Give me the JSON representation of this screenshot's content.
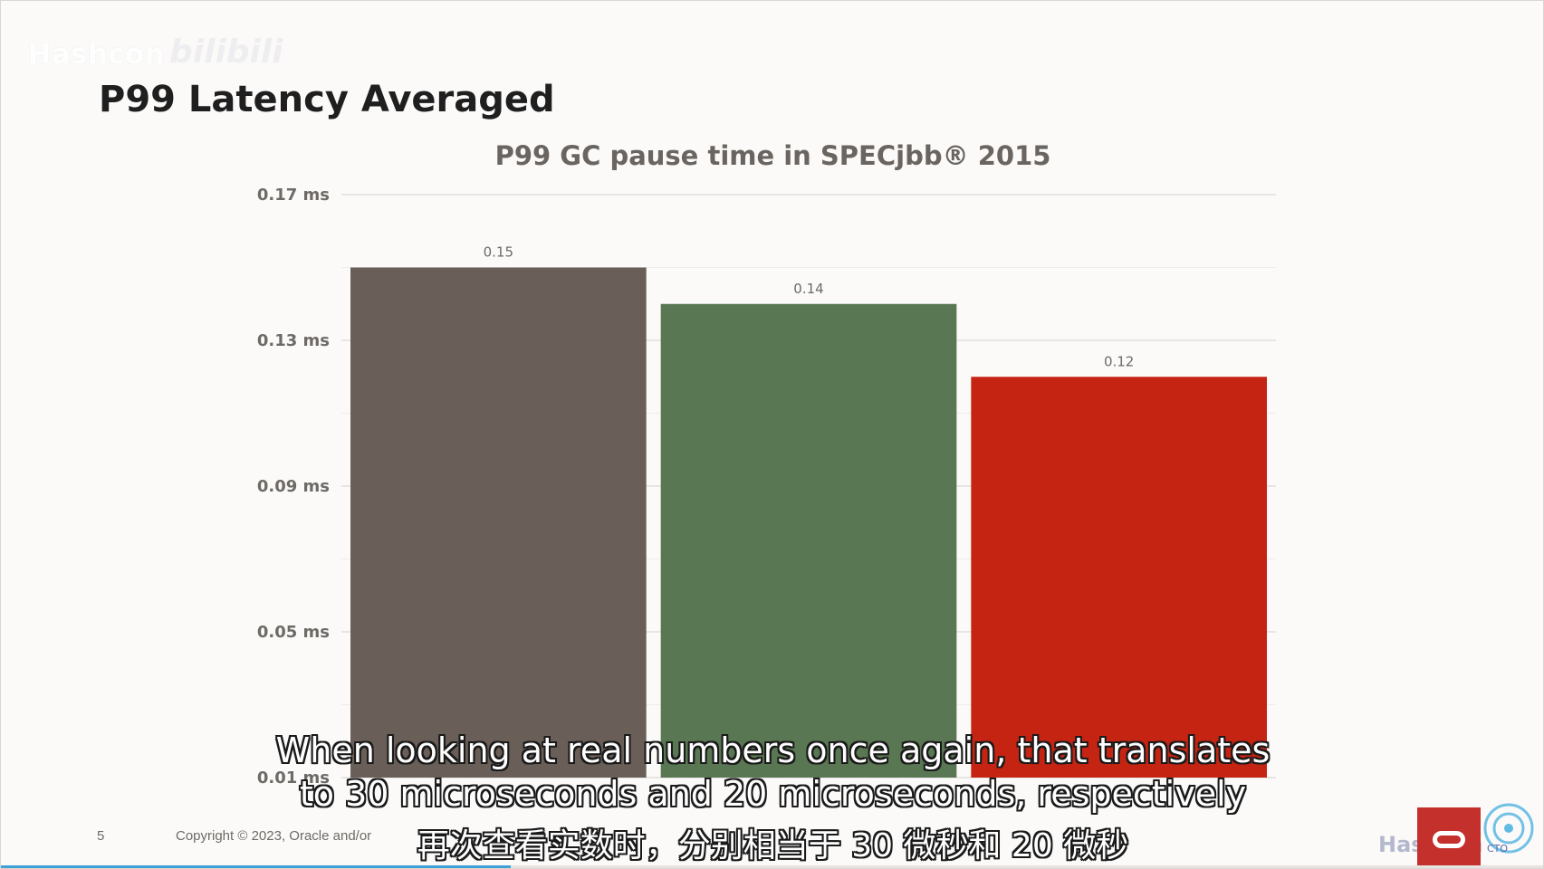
{
  "watermark": {
    "text": "Hashcon",
    "logo_text": "bilibili"
  },
  "slide": {
    "title": "P99 Latency Averaged",
    "number": "5",
    "copyright": "Copyright © 2023, Oracle and/or"
  },
  "subtitles": {
    "line1": "When looking at real numbers once again, that translates",
    "line2": "to 30 microseconds and 20 microseconds, respectively",
    "line3": "再次查看实数时，分别相当于 30 微秒和 20 微秒"
  },
  "progress": {
    "fraction": 0.33
  },
  "branding": {
    "hashcon_text": "Hashcon",
    "cto_text": "CTO",
    "oracle_icon": "oracle-logo-icon"
  },
  "colors": {
    "bar_1": "#6a5f58",
    "bar_2": "#597752",
    "bar_3": "#c52413",
    "progress": "#3fa1d6"
  },
  "chart_data": {
    "type": "bar",
    "title": "P99 GC pause time in SPECjbb® 2015",
    "xlabel": "",
    "ylabel": "",
    "ylim": [
      0.01,
      0.17
    ],
    "yticks": [
      0.01,
      0.05,
      0.09,
      0.13,
      0.17
    ],
    "ytick_labels": [
      "0.01 ms",
      "0.05 ms",
      "0.09 ms",
      "0.13 ms",
      "0.17 ms"
    ],
    "categories": [
      "",
      "",
      ""
    ],
    "values": [
      0.15,
      0.14,
      0.12
    ],
    "value_labels": [
      "0.15",
      "0.14",
      "0.12"
    ],
    "grid": true,
    "legend": "none"
  }
}
